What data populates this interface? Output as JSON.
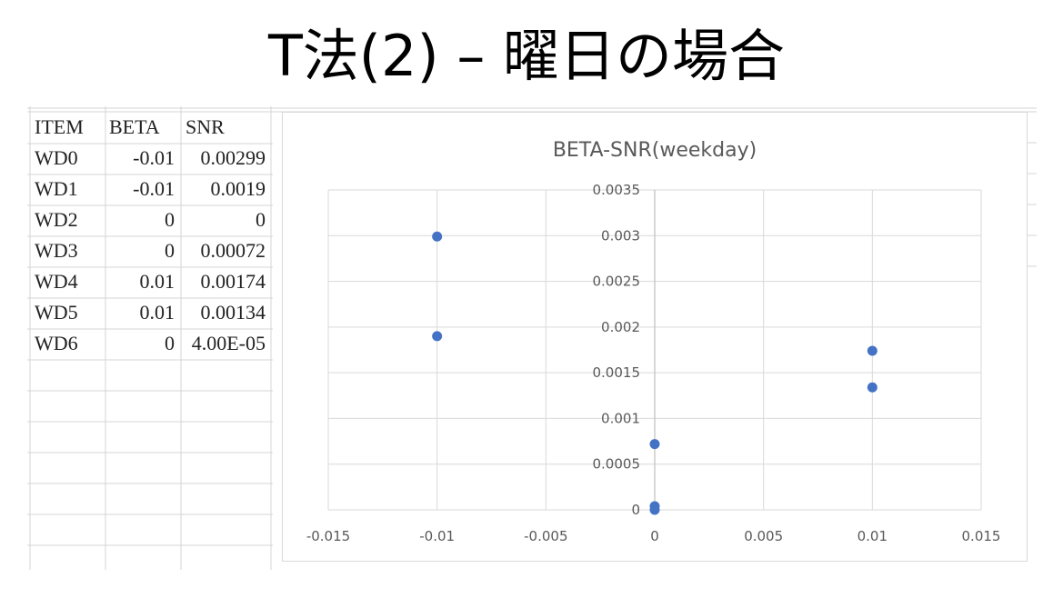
{
  "slide": {
    "title": "T法(2) – 曜日の場合"
  },
  "table": {
    "headers": [
      "ITEM",
      "BETA",
      "SNR"
    ],
    "rows": [
      {
        "item": "WD0",
        "beta": "-0.01",
        "snr": "0.00299"
      },
      {
        "item": "WD1",
        "beta": "-0.01",
        "snr": "0.0019"
      },
      {
        "item": "WD2",
        "beta": "0",
        "snr": "0"
      },
      {
        "item": "WD3",
        "beta": "0",
        "snr": "0.00072"
      },
      {
        "item": "WD4",
        "beta": "0.01",
        "snr": "0.00174"
      },
      {
        "item": "WD5",
        "beta": "0.01",
        "snr": "0.00134"
      },
      {
        "item": "WD6",
        "beta": "0",
        "snr": "4.00E-05"
      }
    ]
  },
  "chart_data": {
    "type": "scatter",
    "title": "BETA-SNR(weekday)",
    "xlabel": "",
    "ylabel": "",
    "xlim": [
      -0.015,
      0.015
    ],
    "ylim": [
      0,
      0.0035
    ],
    "x_ticks": [
      "-0.015",
      "-0.01",
      "-0.005",
      "0",
      "0.005",
      "0.01",
      "0.015"
    ],
    "y_ticks": [
      "0",
      "0.0005",
      "0.001",
      "0.0015",
      "0.002",
      "0.0025",
      "0.003",
      "0.0035"
    ],
    "grid": true,
    "legend": "none",
    "marker_color": "#4472c4",
    "series": [
      {
        "x": [
          -0.01,
          -0.01,
          0,
          0,
          0.01,
          0.01,
          0
        ],
        "y": [
          0.00299,
          0.0019,
          0,
          0.00072,
          0.00174,
          0.00134,
          4e-05
        ]
      }
    ]
  }
}
